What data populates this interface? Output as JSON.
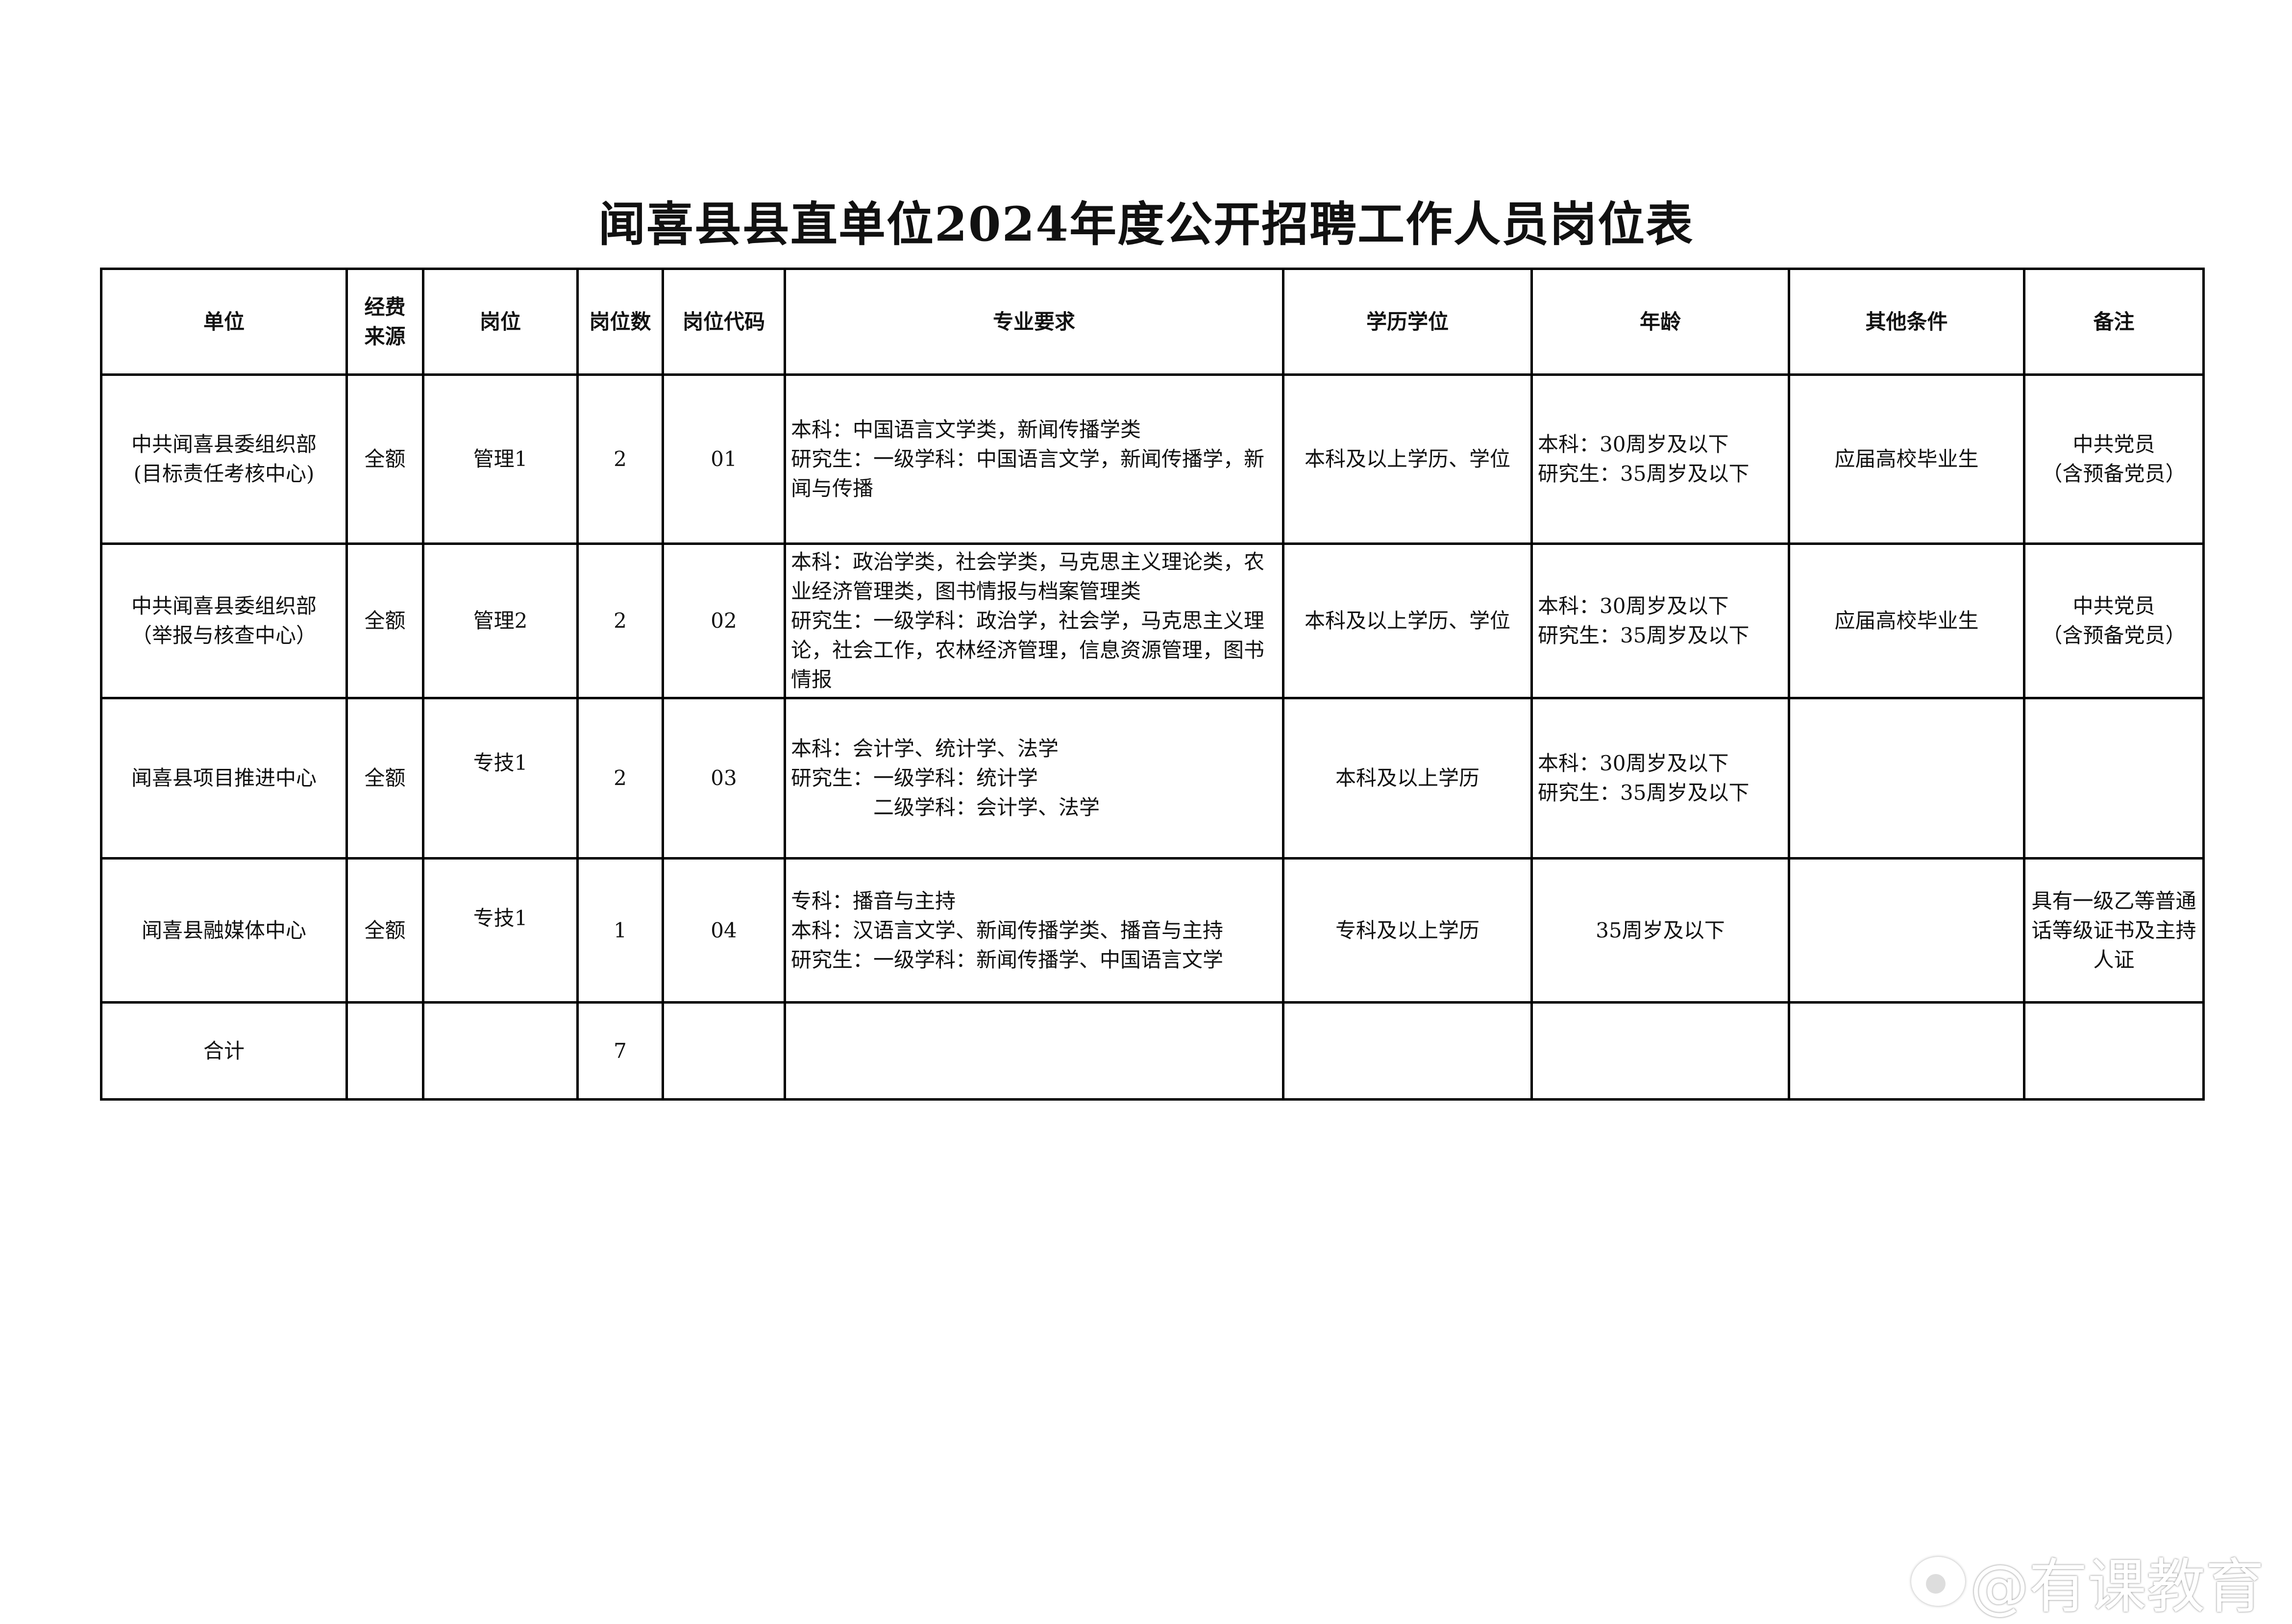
{
  "title": "闻喜县县直单位2024年度公开招聘工作人员岗位表",
  "headers": [
    "单位",
    "经费\n来源",
    "岗位",
    "岗位数",
    "岗位代码",
    "专业要求",
    "学历学位",
    "年龄",
    "其他条件",
    "备注"
  ],
  "rows": [
    {
      "unit": "中共闻喜县委组织部\n(目标责任考核中心)",
      "funding": "全额",
      "post": "管理1",
      "count": "2",
      "code": "01",
      "major": "本科：中国语言文学类，新闻传播学类\n研究生：一级学科：中国语言文学，新闻传播学，新闻与传播",
      "education": "本科及以上学历、学位",
      "age": "本科：30周岁及以下\n研究生：35周岁及以下",
      "other": "应届高校毕业生",
      "note": "中共党员\n（含预备党员）"
    },
    {
      "unit": "中共闻喜县委组织部\n（举报与核查中心）",
      "funding": "全额",
      "post": "管理2",
      "count": "2",
      "code": "02",
      "major": "本科：政治学类，社会学类，马克思主义理论类，农业经济管理类，图书情报与档案管理类\n研究生：一级学科：政治学，社会学，马克思主义理论，社会工作，农林经济管理，信息资源管理，图书情报",
      "education": "本科及以上学历、学位",
      "age": "本科：30周岁及以下\n研究生：35周岁及以下",
      "other": "应届高校毕业生",
      "note": "中共党员\n（含预备党员）"
    },
    {
      "unit": "闻喜县项目推进中心",
      "funding": "全额",
      "post": "专技1",
      "count": "2",
      "code": "03",
      "major": "本科：会计学、统计学、法学\n研究生：一级学科：统计学\n　　　　二级学科：会计学、法学",
      "education": "本科及以上学历",
      "age": "本科：30周岁及以下\n研究生：35周岁及以下",
      "other": "",
      "note": ""
    },
    {
      "unit": "闻喜县融媒体中心",
      "funding": "全额",
      "post": "专技1",
      "count": "1",
      "code": "04",
      "major": "专科：播音与主持\n本科：汉语言文学、新闻传播学类、播音与主持\n研究生：一级学科：新闻传播学、中国语言文学",
      "education": "专科及以上学历",
      "age": "35周岁及以下",
      "other": "",
      "note": "具有一级乙等普通话等级证书及主持人证"
    }
  ],
  "total": {
    "label": "合计",
    "count": "7"
  },
  "watermark": "@有课教育"
}
